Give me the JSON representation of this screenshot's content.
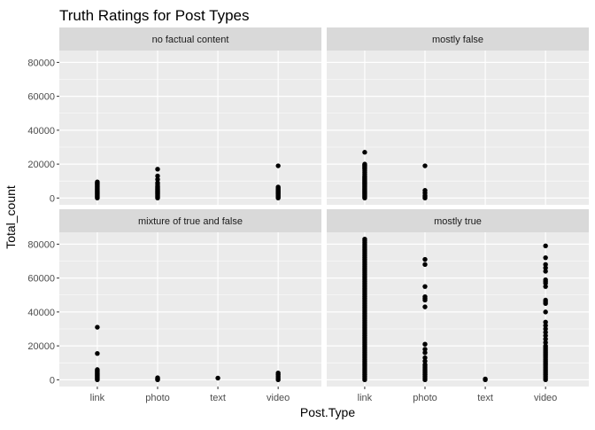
{
  "chart_data": {
    "type": "scatter",
    "title": "Truth Ratings for Post Types",
    "xlabel": "Post.Type",
    "ylabel": "Total_count",
    "categories": [
      "link",
      "photo",
      "text",
      "video"
    ],
    "y_ticks": [
      0,
      20000,
      40000,
      60000,
      80000
    ],
    "y_tick_labels": [
      "0",
      "20000",
      "40000",
      "60000",
      "80000"
    ],
    "ylim": [
      -4000,
      87000
    ],
    "grid": true,
    "legend": "none",
    "point_color": "#000000",
    "panel_bg": "#EBEBEB",
    "strip_bg": "#D9D9D9",
    "facets": [
      {
        "label": "no factual content",
        "points": [
          {
            "x": "link",
            "y": [
              0,
              500,
              1000,
              1500,
              2000,
              2500,
              3000,
              3500,
              4000,
              4500,
              5000,
              5500,
              6000,
              6500,
              7000,
              7500,
              8000,
              8500,
              9000,
              9500
            ]
          },
          {
            "x": "photo",
            "y": [
              0,
              500,
              1000,
              1500,
              2000,
              2500,
              3000,
              3500,
              4000,
              4500,
              5000,
              5500,
              6000,
              6500,
              7000,
              8000,
              9000,
              11000,
              13000,
              17000
            ]
          },
          {
            "x": "video",
            "y": [
              0,
              500,
              1000,
              1500,
              2000,
              2500,
              3000,
              3500,
              4000,
              4500,
              5000,
              5500,
              6000,
              6500,
              19000
            ]
          }
        ]
      },
      {
        "label": "mostly false",
        "points": [
          {
            "x": "link",
            "y": [
              0,
              500,
              1000,
              1500,
              2000,
              2500,
              3000,
              3500,
              4000,
              4500,
              5000,
              5500,
              6000,
              6500,
              7000,
              7500,
              8000,
              8500,
              9000,
              9500,
              10000,
              10500,
              11000,
              11500,
              12000,
              12500,
              13000,
              14000,
              15000,
              16000,
              17000,
              17500,
              18000,
              18500,
              19000,
              19500,
              20000,
              27000
            ]
          },
          {
            "x": "photo",
            "y": [
              0,
              800,
              1500,
              3000,
              4500,
              19000
            ]
          }
        ]
      },
      {
        "label": "mixture of true and false",
        "points": [
          {
            "x": "link",
            "y": [
              0,
              500,
              1000,
              1500,
              2000,
              2500,
              3000,
              3500,
              4000,
              4500,
              5000,
              5500,
              6000,
              15500,
              31000
            ]
          },
          {
            "x": "photo",
            "y": [
              0,
              300,
              700,
              1200
            ]
          },
          {
            "x": "text",
            "y": [
              1000
            ]
          },
          {
            "x": "video",
            "y": [
              0,
              1000,
              2000,
              3000,
              4000
            ]
          }
        ]
      },
      {
        "label": "mostly true",
        "points": [
          {
            "x": "link",
            "y": [
              0,
              1000,
              2000,
              3000,
              4000,
              5000,
              6000,
              7000,
              8000,
              9000,
              10000,
              11000,
              12000,
              13000,
              14000,
              15000,
              16000,
              17000,
              18000,
              19000,
              20000,
              21000,
              22000,
              23000,
              24000,
              25000,
              26000,
              27000,
              28000,
              29000,
              30000,
              31000,
              32000,
              33000,
              34000,
              35000,
              36000,
              37000,
              38000,
              39000,
              40000,
              41000,
              42000,
              43000,
              44000,
              45000,
              46000,
              47000,
              48000,
              49000,
              50000,
              51000,
              52000,
              53000,
              54000,
              55000,
              56000,
              57000,
              58000,
              59000,
              60000,
              61000,
              62000,
              63000,
              64000,
              65000,
              66000,
              67000,
              68000,
              69000,
              70000,
              71000,
              72000,
              73000,
              74000,
              75000,
              76000,
              77000,
              78000,
              79000,
              80000,
              81000,
              82000,
              83000
            ]
          },
          {
            "x": "photo",
            "y": [
              0,
              1000,
              2000,
              3000,
              4000,
              5000,
              6000,
              7000,
              8000,
              9000,
              11000,
              13000,
              16000,
              18000,
              21000,
              43000,
              47000,
              48000,
              49000,
              55000,
              68000,
              71000
            ]
          },
          {
            "x": "text",
            "y": [
              0,
              500
            ]
          },
          {
            "x": "video",
            "y": [
              0,
              1000,
              2000,
              3000,
              4000,
              5000,
              6000,
              7000,
              8000,
              9000,
              10000,
              11000,
              12000,
              13000,
              14000,
              15000,
              16000,
              17000,
              18000,
              19000,
              20000,
              22000,
              24000,
              26000,
              28000,
              30000,
              32000,
              34000,
              40000,
              45000,
              46000,
              47000,
              55000,
              57000,
              58000,
              59000,
              64000,
              66000,
              68000,
              72000,
              79000
            ]
          }
        ]
      }
    ]
  }
}
